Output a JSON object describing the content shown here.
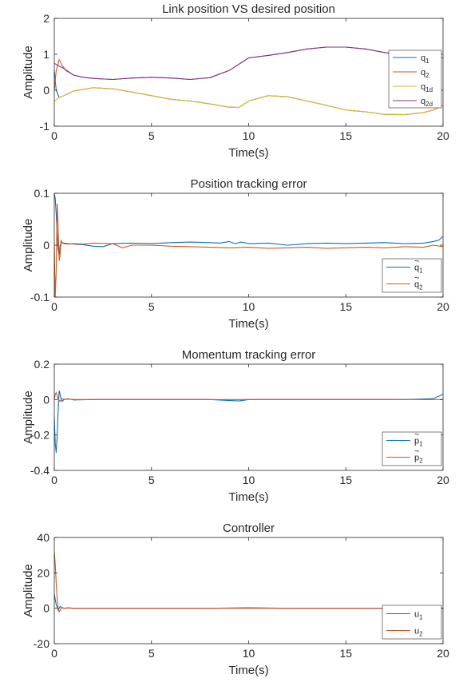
{
  "colors": {
    "blue": "#0072BD",
    "orange": "#D95319",
    "yellow": "#EDB120",
    "purple": "#7E2F8E"
  },
  "chart_data": [
    {
      "type": "line",
      "title": "Link position VS desired position",
      "xlabel": "Time(s)",
      "ylabel": "Amplitude",
      "xlim": [
        0,
        20
      ],
      "ylim": [
        -1,
        2
      ],
      "xticks": [
        0,
        5,
        10,
        15,
        20
      ],
      "yticks": [
        -1,
        0,
        1,
        2
      ],
      "legend_position": "right",
      "series": [
        {
          "name": "q",
          "sub": "1",
          "accent": "",
          "color": "#0072BD",
          "x": [
            0,
            0.1,
            0.25,
            0.5,
            1,
            2,
            3,
            4,
            5,
            6,
            7,
            8,
            9,
            9.5,
            10,
            11,
            12,
            13,
            14,
            15,
            16,
            17,
            18,
            19,
            19.5,
            20
          ],
          "y": [
            0.55,
            0.0,
            -0.2,
            -0.15,
            -0.02,
            0.07,
            0.04,
            -0.05,
            -0.15,
            -0.25,
            -0.3,
            -0.38,
            -0.47,
            -0.48,
            -0.3,
            -0.15,
            -0.18,
            -0.3,
            -0.42,
            -0.55,
            -0.6,
            -0.67,
            -0.68,
            -0.62,
            -0.55,
            -0.42
          ]
        },
        {
          "name": "q",
          "sub": "2",
          "accent": "",
          "color": "#D95319",
          "x": [
            0,
            0.1,
            0.25,
            0.4,
            0.6,
            1,
            1.5,
            2,
            3,
            4,
            5,
            6,
            7,
            8,
            9,
            10,
            11,
            12,
            13,
            14,
            15,
            16,
            17,
            18,
            19,
            20
          ],
          "y": [
            0.0,
            0.55,
            0.85,
            0.7,
            0.55,
            0.42,
            0.36,
            0.33,
            0.3,
            0.34,
            0.36,
            0.34,
            0.3,
            0.35,
            0.55,
            0.9,
            0.97,
            1.05,
            1.15,
            1.2,
            1.2,
            1.15,
            1.05,
            0.98,
            0.95,
            0.9
          ]
        },
        {
          "name": "q",
          "sub": "1d",
          "accent": "",
          "color": "#EDB120",
          "x": [
            0,
            0.25,
            0.5,
            1,
            2,
            3,
            4,
            5,
            6,
            7,
            8,
            9,
            9.5,
            10,
            11,
            12,
            13,
            14,
            15,
            16,
            17,
            18,
            19,
            19.5,
            20
          ],
          "y": [
            -0.3,
            -0.2,
            -0.15,
            -0.02,
            0.07,
            0.04,
            -0.05,
            -0.15,
            -0.25,
            -0.3,
            -0.38,
            -0.47,
            -0.48,
            -0.3,
            -0.15,
            -0.18,
            -0.3,
            -0.42,
            -0.55,
            -0.6,
            -0.67,
            -0.68,
            -0.62,
            -0.55,
            -0.42
          ]
        },
        {
          "name": "q",
          "sub": "2d",
          "accent": "",
          "color": "#7E2F8E",
          "x": [
            0,
            0.5,
            1,
            1.5,
            2,
            3,
            4,
            5,
            6,
            7,
            8,
            9,
            10,
            11,
            12,
            13,
            14,
            15,
            16,
            17,
            18,
            19,
            20
          ],
          "y": [
            0.75,
            0.6,
            0.42,
            0.36,
            0.33,
            0.3,
            0.34,
            0.36,
            0.34,
            0.3,
            0.35,
            0.55,
            0.9,
            0.97,
            1.05,
            1.15,
            1.2,
            1.2,
            1.15,
            1.05,
            0.98,
            0.95,
            0.9
          ]
        }
      ]
    },
    {
      "type": "line",
      "title": "Position tracking error",
      "xlabel": "Time(s)",
      "ylabel": "Amplitude",
      "xlim": [
        0,
        20
      ],
      "ylim": [
        -0.1,
        0.1
      ],
      "xticks": [
        0,
        5,
        10,
        15,
        20
      ],
      "yticks": [
        -0.1,
        0,
        0.1
      ],
      "legend_position": "bottom-right",
      "series": [
        {
          "name": "q",
          "sub": "1",
          "accent": "~",
          "color": "#0072BD",
          "x": [
            0,
            0.05,
            0.1,
            0.15,
            0.2,
            0.25,
            0.3,
            0.4,
            0.5,
            0.7,
            1,
            1.5,
            2,
            2.5,
            3,
            4,
            5,
            6,
            7,
            8,
            8.5,
            9,
            9.3,
            9.6,
            10,
            11,
            12,
            13,
            14,
            15,
            16,
            17,
            18,
            19,
            19.5,
            19.8,
            20
          ],
          "y": [
            0.1,
            0.09,
            0.06,
            0.02,
            -0.01,
            -0.02,
            0.0,
            0.005,
            0.004,
            0.003,
            0.002,
            0.001,
            -0.002,
            -0.003,
            0.003,
            0.004,
            0.003,
            0.005,
            0.006,
            0.005,
            0.004,
            0.007,
            0.003,
            0.006,
            0.003,
            0.004,
            0.0,
            0.003,
            0.004,
            0.003,
            0.004,
            0.005,
            0.003,
            0.004,
            0.007,
            0.01,
            0.017
          ]
        },
        {
          "name": "q",
          "sub": "2",
          "accent": "~",
          "color": "#D95319",
          "x": [
            0,
            0.05,
            0.1,
            0.15,
            0.2,
            0.25,
            0.3,
            0.35,
            0.4,
            0.5,
            0.7,
            1,
            1.5,
            2,
            3,
            3.5,
            4,
            5,
            6,
            7,
            8,
            9,
            10,
            11,
            12,
            13,
            14,
            15,
            16,
            17,
            18,
            19,
            19.5,
            20
          ],
          "y": [
            0.0,
            -0.1,
            -0.05,
            0.08,
            0.03,
            -0.03,
            -0.02,
            0.01,
            0.005,
            0.003,
            0.002,
            0.003,
            0.002,
            0.004,
            0.003,
            -0.005,
            0.0,
            0.0,
            -0.002,
            -0.003,
            -0.004,
            -0.005,
            -0.004,
            -0.006,
            -0.005,
            -0.004,
            -0.006,
            -0.005,
            -0.004,
            -0.005,
            -0.003,
            -0.004,
            0.0,
            -0.003
          ]
        }
      ]
    },
    {
      "type": "line",
      "title": "Momentum tracking error",
      "xlabel": "Time(s)",
      "ylabel": "Amplitude",
      "xlim": [
        0,
        20
      ],
      "ylim": [
        -0.4,
        0.2
      ],
      "xticks": [
        0,
        5,
        10,
        15,
        20
      ],
      "yticks": [
        -0.4,
        -0.2,
        0,
        0.2
      ],
      "legend_position": "bottom-right",
      "series": [
        {
          "name": "p",
          "sub": "1",
          "accent": "~",
          "color": "#0072BD",
          "x": [
            0,
            0.05,
            0.1,
            0.15,
            0.2,
            0.25,
            0.3,
            0.35,
            0.4,
            0.5,
            0.7,
            1,
            2,
            5,
            8,
            9.5,
            10,
            12,
            15,
            18,
            19.5,
            20
          ],
          "y": [
            -0.1,
            -0.25,
            -0.3,
            -0.2,
            -0.05,
            0.05,
            0.03,
            0.0,
            -0.01,
            0.0,
            0.005,
            -0.002,
            0.0,
            0.0,
            0.0,
            -0.008,
            0.0,
            0.0,
            0.0,
            0.0,
            0.005,
            0.03
          ]
        },
        {
          "name": "p",
          "sub": "2",
          "accent": "~",
          "color": "#D95319",
          "x": [
            0,
            0.05,
            0.1,
            0.15,
            0.2,
            0.3,
            0.4,
            0.5,
            0.7,
            1,
            2,
            5,
            8,
            10,
            12,
            15,
            18,
            20
          ],
          "y": [
            0.0,
            0.03,
            0.04,
            0.02,
            0.0,
            -0.01,
            0.005,
            0.0,
            0.003,
            0.0,
            0.0,
            0.0,
            0.0,
            0.0,
            0.0,
            0.0,
            0.0,
            0.0
          ]
        }
      ]
    },
    {
      "type": "line",
      "title": "Controller",
      "xlabel": "Time(s)",
      "ylabel": "Amplitude",
      "xlim": [
        0,
        20
      ],
      "ylim": [
        -20,
        40
      ],
      "xticks": [
        0,
        5,
        10,
        15,
        20
      ],
      "yticks": [
        -20,
        0,
        20,
        40
      ],
      "legend_position": "bottom-right",
      "series": [
        {
          "name": "u",
          "sub": "1",
          "accent": "",
          "color": "#0072BD",
          "x": [
            0,
            0.05,
            0.1,
            0.15,
            0.2,
            0.3,
            0.4,
            0.5,
            0.7,
            1,
            2,
            5,
            8,
            10,
            12,
            15,
            18,
            20
          ],
          "y": [
            8,
            5,
            2,
            0.5,
            -1,
            1,
            0.3,
            0,
            0.2,
            0,
            0,
            0,
            0,
            0.3,
            0,
            0,
            0,
            0
          ]
        },
        {
          "name": "u",
          "sub": "2",
          "accent": "",
          "color": "#D95319",
          "x": [
            0,
            0.05,
            0.1,
            0.15,
            0.2,
            0.25,
            0.3,
            0.4,
            0.5,
            0.7,
            1,
            2,
            5,
            8,
            10,
            12,
            15,
            18,
            20
          ],
          "y": [
            32,
            25,
            14,
            5,
            0,
            -2,
            -1,
            0.5,
            0,
            0.2,
            0,
            0,
            0,
            0,
            0,
            0,
            0,
            0,
            0
          ]
        }
      ]
    }
  ]
}
